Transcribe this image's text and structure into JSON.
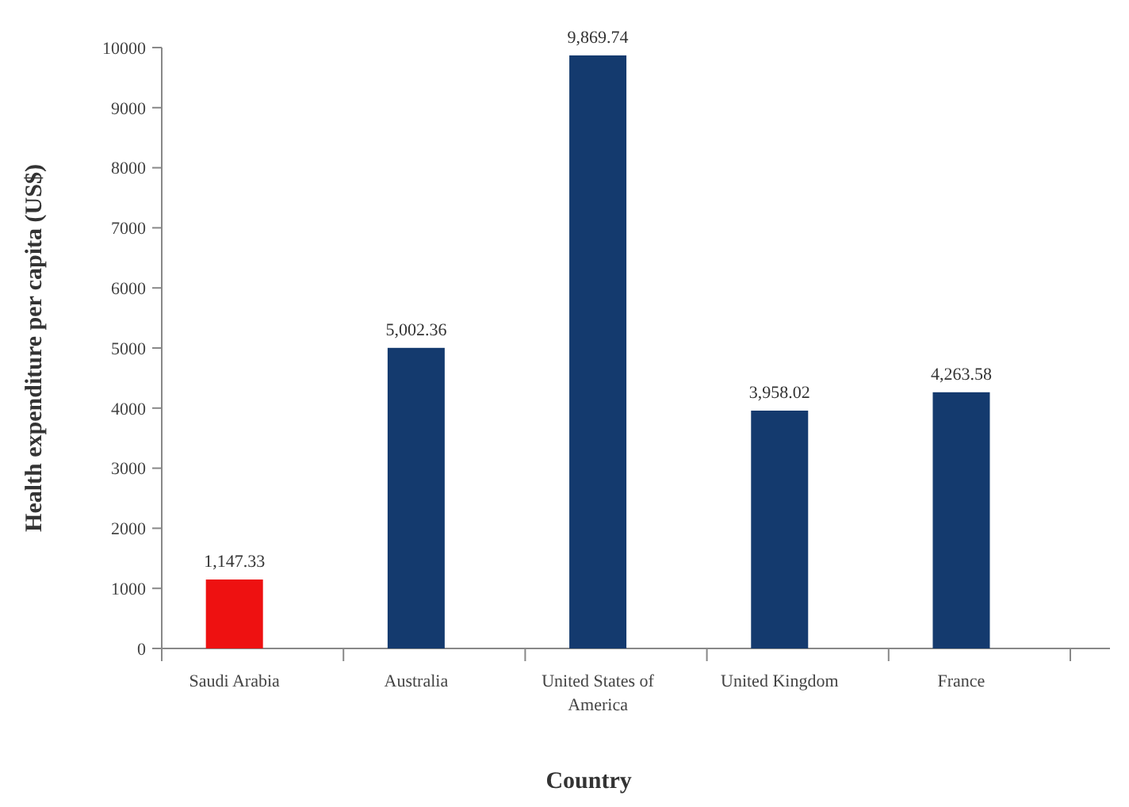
{
  "chart_data": {
    "type": "bar",
    "xlabel": "Country",
    "ylabel": "Health expenditure per capita (US$)",
    "categories": [
      "Saudi Arabia",
      "Australia",
      "United States of America",
      "United Kingdom",
      "France"
    ],
    "values": [
      1147.33,
      5002.36,
      9869.74,
      3958.02,
      4263.58
    ],
    "colors": [
      "#ee1111",
      "#143a6e",
      "#143a6e",
      "#143a6e",
      "#143a6e"
    ],
    "value_labels": [
      "1,147.33",
      "5,002.36",
      "9,869.74",
      "3,958.02",
      "4,263.58"
    ],
    "ylim": [
      0,
      10000
    ],
    "yticks": [
      0,
      1000,
      2000,
      3000,
      4000,
      5000,
      6000,
      7000,
      8000,
      9000,
      10000
    ],
    "grid": false
  }
}
